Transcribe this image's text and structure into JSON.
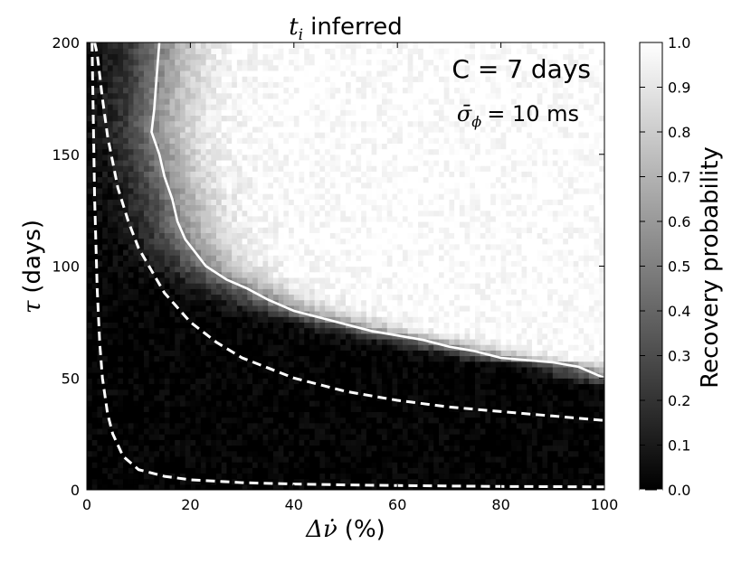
{
  "chart_data": {
    "type": "heatmap",
    "title": {
      "symbol": "t",
      "subscript": "i",
      "text": "inferred"
    },
    "xlabel": {
      "symbol": "Δν̇",
      "unit": "(%)"
    },
    "ylabel": {
      "symbol": "τ",
      "unit": "(days)"
    },
    "xlim": [
      0,
      100
    ],
    "ylim": [
      0,
      200
    ],
    "xticks": [
      0,
      20,
      40,
      60,
      80,
      100
    ],
    "yticks": [
      0,
      50,
      100,
      150,
      200
    ],
    "colorbar": {
      "label": "Recovery probability",
      "range": [
        0.0,
        1.0
      ],
      "ticks": [
        "0.0",
        "0.1",
        "0.2",
        "0.3",
        "0.4",
        "0.5",
        "0.6",
        "0.7",
        "0.8",
        "0.9",
        "1.0"
      ],
      "colormap": "gray"
    },
    "annotations": {
      "cadence": "C = 7 days",
      "sigma_symbol": "σ̄",
      "sigma_sub": "ϕ",
      "sigma_value": "= 10 ms"
    },
    "contour_0_5": {
      "x": [
        14.0,
        13.5,
        13.0,
        12.5,
        14.0,
        15.0,
        16.5,
        17.5,
        19.0,
        21.0,
        23.0,
        27.0,
        31.0,
        35.0,
        40.0,
        45.0,
        50.0,
        55.0,
        60.0,
        65.0,
        70.0,
        75.0,
        80.0,
        85.0,
        90.0,
        95.0,
        100.0
      ],
      "y": [
        200,
        185,
        170,
        160,
        150,
        140,
        130,
        120,
        112,
        106,
        100,
        94,
        90,
        85,
        80,
        77,
        74,
        71,
        69,
        67,
        64,
        62,
        59,
        58,
        57,
        55,
        50
      ]
    },
    "dashed_curves": [
      {
        "x": [
          1.0,
          1.5,
          2.0,
          2.5,
          3.0,
          4.0,
          5.0,
          7.0,
          10.0,
          15.0,
          20.0,
          30.0,
          40.0,
          50.0,
          60.0,
          70.0,
          80.0,
          90.0,
          100.0
        ],
        "y": [
          200,
          130,
          90,
          65,
          50,
          34,
          25,
          15,
          9,
          6,
          4.5,
          3.2,
          2.6,
          2.2,
          1.9,
          1.7,
          1.5,
          1.4,
          1.3
        ]
      },
      {
        "x": [
          1.5,
          2.0,
          3.0,
          4.0,
          6.0,
          8.0,
          10.0,
          15.0,
          20.0,
          25.0,
          30.0,
          40.0,
          50.0,
          60.0,
          70.0,
          80.0,
          90.0,
          100.0
        ],
        "y": [
          200,
          195,
          175,
          158,
          135,
          120,
          108,
          88,
          75,
          66,
          59,
          50,
          44,
          40,
          37,
          35,
          33,
          31
        ]
      }
    ]
  }
}
